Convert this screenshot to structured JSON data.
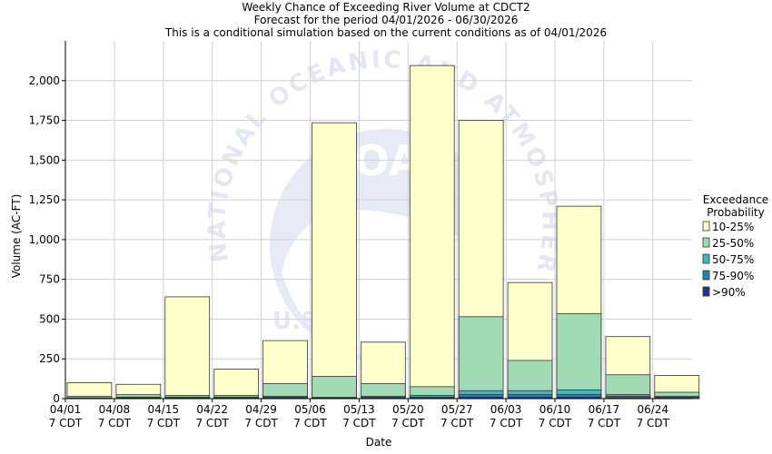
{
  "header": {
    "title": "Weekly Chance of Exceeding River Volume at CDCT2",
    "subtitle1": "Forecast for the period 04/01/2026 - 06/30/2026",
    "subtitle2": "This is a conditional simulation based on the current conditions as of 04/01/2026"
  },
  "watermark": {
    "ring_text": "NATIONAL OCEANIC AND ATMOSPHERIC ADMINISTRATION",
    "center_text": "NOAA",
    "bottom_text": "U.S."
  },
  "colors": {
    "p10_25": "#ffffcc",
    "p25_50": "#a1dab4",
    "p50_75": "#41b6c4",
    "p75_90": "#2c7fb8",
    "p90": "#253494",
    "grid": "#d0d0d0",
    "bar_stroke": "#333333"
  },
  "chart_data": {
    "type": "bar",
    "title": "Weekly Chance of Exceeding River Volume at CDCT2",
    "xlabel": "Date",
    "ylabel": "Volume (AC-FT)",
    "ylim": [
      0,
      2250
    ],
    "yticks": [
      0,
      250,
      500,
      750,
      1000,
      1250,
      1500,
      1750,
      2000
    ],
    "ytick_labels": [
      "0",
      "250",
      "500",
      "750",
      "1,000",
      "1,250",
      "1,500",
      "1,750",
      "2,000"
    ],
    "categories": [
      "04/01",
      "04/08",
      "04/15",
      "04/22",
      "04/29",
      "05/06",
      "05/13",
      "05/20",
      "05/27",
      "06/03",
      "06/10",
      "06/17",
      "06/24"
    ],
    "category_sublabel": "7 CDT",
    "legend_title": [
      "Exceedance",
      "Probability"
    ],
    "legend_position": "right",
    "grid": true,
    "series": [
      {
        "name": "10-25%",
        "color_key": "p10_25",
        "values": [
          100,
          90,
          640,
          185,
          365,
          1735,
          355,
          2095,
          1750,
          730,
          1210,
          390,
          145
        ]
      },
      {
        "name": "25-50%",
        "color_key": "p25_50",
        "values": [
          15,
          25,
          20,
          20,
          95,
          140,
          95,
          75,
          515,
          240,
          535,
          150,
          40
        ]
      },
      {
        "name": "50-75%",
        "color_key": "p50_75",
        "values": [
          5,
          10,
          10,
          10,
          15,
          8,
          15,
          20,
          50,
          50,
          55,
          25,
          15
        ]
      },
      {
        "name": "75-90%",
        "color_key": "p75_90",
        "values": [
          3,
          5,
          5,
          5,
          8,
          4,
          8,
          10,
          25,
          25,
          25,
          15,
          8
        ]
      },
      {
        "name": ">90%",
        "color_key": "p90",
        "values": [
          1,
          2,
          2,
          2,
          3,
          2,
          3,
          5,
          10,
          10,
          10,
          5,
          3
        ]
      }
    ]
  }
}
